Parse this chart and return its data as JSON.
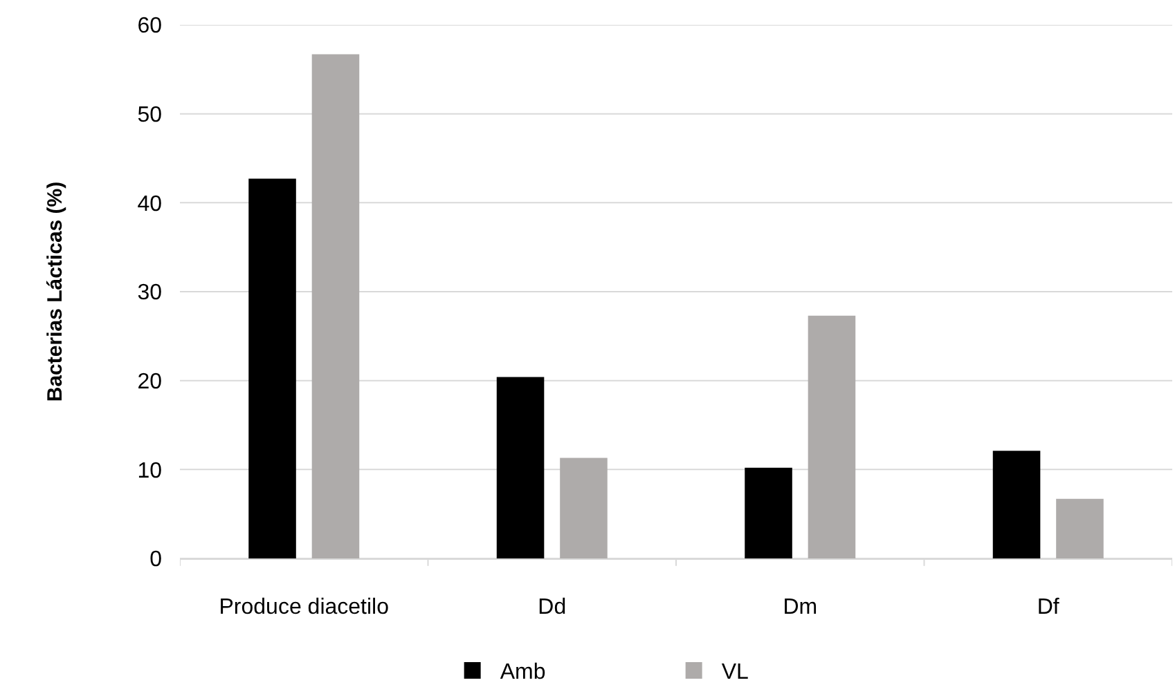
{
  "chart_data": {
    "type": "bar",
    "ylabel": "Bacterias Lácticas (%)",
    "categories": [
      "Produce diacetilo",
      "Dd",
      "Dm",
      "Df"
    ],
    "series": [
      {
        "name": "Amb",
        "color": "#000000",
        "values": [
          42.7,
          20.4,
          10.2,
          12.1
        ]
      },
      {
        "name": "VL",
        "color": "#aeabaa",
        "values": [
          56.7,
          11.3,
          27.3,
          6.7
        ]
      }
    ],
    "ylim": [
      0,
      60
    ],
    "yticks": [
      0,
      10,
      20,
      30,
      40,
      50,
      60
    ],
    "grid": "y",
    "legend": "bottom"
  }
}
